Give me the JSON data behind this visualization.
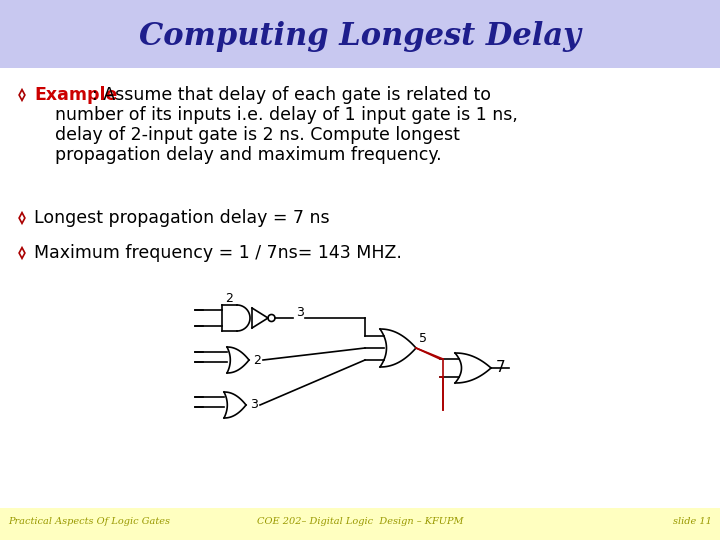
{
  "title": "Computing Longest Delay",
  "title_color": "#1E1E8C",
  "title_bg_color": "#C8C8F0",
  "bg_color": "#FFFFFF",
  "footer_bg_color": "#FFFFC0",
  "bullet_color": "#CC0000",
  "text_color": "#000000",
  "footer_left": "Practical Aspects Of Logic Gates",
  "footer_center": "COE 202– Digital Logic  Design – KFUPM",
  "footer_right": "slide 11"
}
